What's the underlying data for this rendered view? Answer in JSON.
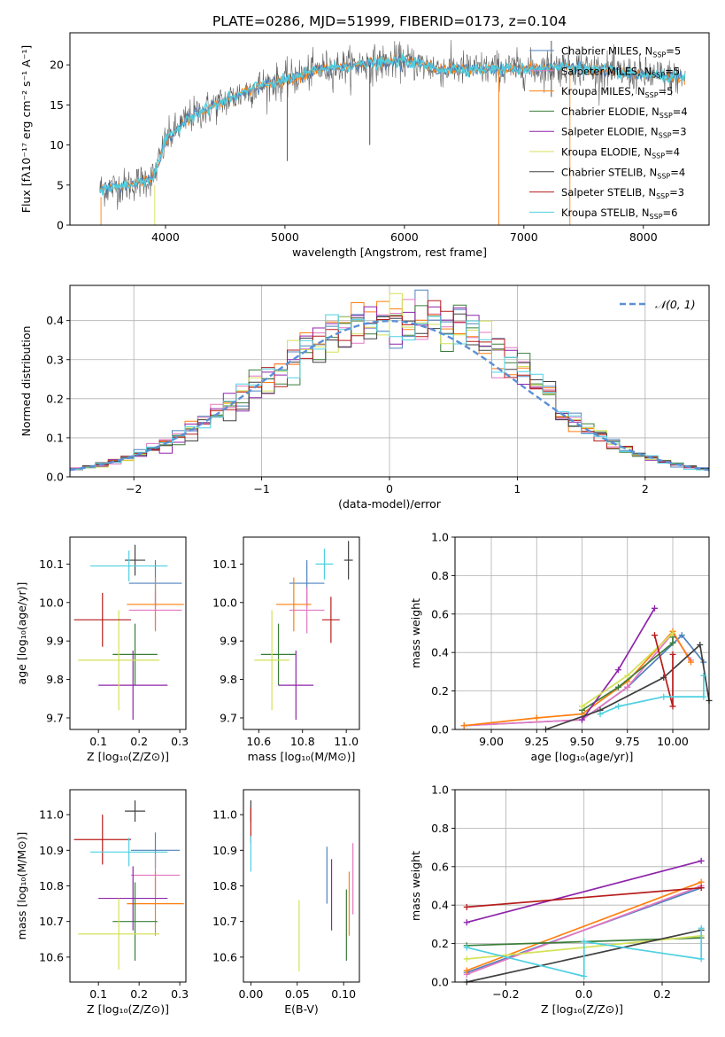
{
  "figure_title": "PLATE=0286, MJD=51999, FIBERID=0173, z=0.104",
  "colors": {
    "Chabrier MILES": "#4f81bd",
    "Salpeter MILES": "#e377c2",
    "Kroupa MILES": "#ff7f0e",
    "Chabrier ELODIE": "#3a7d3a",
    "Salpeter ELODIE": "#8e24aa",
    "Kroupa ELODIE": "#d4e157",
    "Chabrier STELIB": "#404040",
    "Salpeter STELIB": "#b71c1c",
    "Kroupa STELIB": "#4dd0e1",
    "gaussian": "#5b8fd6"
  },
  "chart_data": [
    {
      "id": "spectrum",
      "type": "line",
      "xlabel": "wavelength [Angstrom, rest frame]",
      "ylabel": "Flux [fλ10⁻¹⁷ erg cm⁻² s⁻¹ A⁻¹]",
      "xlim": [
        3200,
        8550
      ],
      "ylim": [
        0,
        24
      ],
      "xticks": [
        4000,
        5000,
        6000,
        7000,
        8000
      ],
      "yticks": [
        0,
        5,
        10,
        15,
        20
      ],
      "legend": "right",
      "legend_entries": [
        {
          "label": "Chabrier MILES, N",
          "sub": "SSP",
          "tail": "=5"
        },
        {
          "label": "Salpeter MILES, N",
          "sub": "SSP",
          "tail": "=5"
        },
        {
          "label": "Kroupa MILES, N",
          "sub": "SSP",
          "tail": "=5"
        },
        {
          "label": "Chabrier ELODIE, N",
          "sub": "SSP",
          "tail": "=4"
        },
        {
          "label": "Salpeter ELODIE, N",
          "sub": "SSP",
          "tail": "=3"
        },
        {
          "label": "Kroupa ELODIE, N",
          "sub": "SSP",
          "tail": "=4"
        },
        {
          "label": "Chabrier STELIB, N",
          "sub": "SSP",
          "tail": "=4"
        },
        {
          "label": "Salpeter STELIB, N",
          "sub": "SSP",
          "tail": "=3"
        },
        {
          "label": "Kroupa STELIB, N",
          "sub": "SSP",
          "tail": "=6"
        }
      ],
      "continuum": [
        [
          3450,
          4.5
        ],
        [
          3700,
          5.0
        ],
        [
          3900,
          6.0
        ],
        [
          4000,
          10.5
        ],
        [
          4200,
          13.5
        ],
        [
          4500,
          15.5
        ],
        [
          4800,
          17.5
        ],
        [
          5000,
          18.0
        ],
        [
          5300,
          19.5
        ],
        [
          5600,
          20.0
        ],
        [
          6000,
          20.5
        ],
        [
          6300,
          19.5
        ],
        [
          6600,
          19.5
        ],
        [
          7000,
          19.5
        ],
        [
          7400,
          19.8
        ],
        [
          7800,
          19.0
        ],
        [
          8200,
          18.5
        ],
        [
          8350,
          18.3
        ]
      ]
    },
    {
      "id": "residuals",
      "type": "histogram",
      "xlabel": "(data-model)/error",
      "ylabel": "Normed distribution",
      "xlim": [
        -2.5,
        2.5
      ],
      "ylim": [
        0,
        0.49
      ],
      "xticks": [
        -2,
        -1,
        0,
        1,
        2
      ],
      "yticks": [
        0.0,
        0.1,
        0.2,
        0.3,
        0.4
      ],
      "legend_label": "𝒩(0, 1)",
      "legend": "top-right",
      "grid": true
    },
    {
      "id": "age_vs_Z",
      "type": "errorbar",
      "xlabel": "Z [log₁₀(Z/Z⊙)]",
      "ylabel": "age  [log₁₀(age/yr)]",
      "xlim": [
        0.03,
        0.315
      ],
      "ylim": [
        9.67,
        10.17
      ],
      "xticks": [
        0.1,
        0.2,
        0.3
      ],
      "yticks": [
        9.7,
        9.8,
        9.9,
        10.0,
        10.1
      ],
      "points": [
        {
          "s": "Chabrier MILES",
          "x": 0.24,
          "xe": 0.065,
          "y": 10.05,
          "ye": 0.06
        },
        {
          "s": "Salpeter MILES",
          "x": 0.24,
          "xe": 0.065,
          "y": 9.98,
          "ye": 0.05
        },
        {
          "s": "Kroupa MILES",
          "x": 0.24,
          "xe": 0.07,
          "y": 9.995,
          "ye": 0.07
        },
        {
          "s": "Chabrier ELODIE",
          "x": 0.19,
          "xe": 0.055,
          "y": 9.865,
          "ye": 0.08
        },
        {
          "s": "Salpeter ELODIE",
          "x": 0.185,
          "xe": 0.085,
          "y": 9.785,
          "ye": 0.09
        },
        {
          "s": "Kroupa ELODIE",
          "x": 0.15,
          "xe": 0.1,
          "y": 9.85,
          "ye": 0.13
        },
        {
          "s": "Chabrier STELIB",
          "x": 0.19,
          "xe": 0.025,
          "y": 10.11,
          "ye": 0.04
        },
        {
          "s": "Salpeter STELIB",
          "x": 0.11,
          "xe": 0.07,
          "y": 9.955,
          "ye": 0.07
        },
        {
          "s": "Kroupa STELIB",
          "x": 0.175,
          "xe": 0.095,
          "y": 10.095,
          "ye": 0.04
        }
      ]
    },
    {
      "id": "age_vs_mass",
      "type": "errorbar",
      "xlabel": "mass [log₁₀(M/M⊙)]",
      "ylabel": "",
      "xlim": [
        10.53,
        11.06
      ],
      "ylim": [
        9.67,
        10.17
      ],
      "xticks": [
        10.6,
        10.8,
        11.0
      ],
      "yticks": [
        9.7,
        9.8,
        9.9,
        10.0,
        10.1
      ],
      "points": [
        {
          "s": "Chabrier MILES",
          "x": 10.82,
          "xe": 0.08,
          "y": 10.05,
          "ye": 0.06
        },
        {
          "s": "Salpeter MILES",
          "x": 10.82,
          "xe": 0.08,
          "y": 9.98,
          "ye": 0.06
        },
        {
          "s": "Kroupa MILES",
          "x": 10.76,
          "xe": 0.08,
          "y": 9.995,
          "ye": 0.07
        },
        {
          "s": "Chabrier ELODIE",
          "x": 10.69,
          "xe": 0.08,
          "y": 9.865,
          "ye": 0.08
        },
        {
          "s": "Salpeter ELODIE",
          "x": 10.77,
          "xe": 0.08,
          "y": 9.785,
          "ye": 0.09
        },
        {
          "s": "Kroupa ELODIE",
          "x": 10.66,
          "xe": 0.08,
          "y": 9.85,
          "ye": 0.13
        },
        {
          "s": "Chabrier STELIB",
          "x": 11.01,
          "xe": 0.02,
          "y": 10.11,
          "ye": 0.05
        },
        {
          "s": "Salpeter STELIB",
          "x": 10.93,
          "xe": 0.04,
          "y": 9.955,
          "ye": 0.06
        },
        {
          "s": "Kroupa STELIB",
          "x": 10.9,
          "xe": 0.04,
          "y": 10.1,
          "ye": 0.04
        }
      ]
    },
    {
      "id": "weight_vs_age",
      "type": "line",
      "xlabel": "age  [log₁₀(age/yr)]",
      "ylabel": "mass weight",
      "xlim": [
        8.8,
        10.2
      ],
      "ylim": [
        0,
        1.0
      ],
      "xticks": [
        9.0,
        9.25,
        9.5,
        9.75,
        10.0
      ],
      "yticks": [
        0.0,
        0.2,
        0.4,
        0.6,
        0.8,
        1.0
      ],
      "grid": true,
      "series": [
        {
          "s": "Chabrier MILES",
          "points": [
            [
              8.85,
              0.02
            ],
            [
              9.5,
              0.05
            ],
            [
              9.75,
              0.22
            ],
            [
              10.05,
              0.49
            ],
            [
              10.17,
              0.35
            ]
          ]
        },
        {
          "s": "Salpeter MILES",
          "points": [
            [
              8.85,
              0.02
            ],
            [
              9.5,
              0.05
            ],
            [
              9.75,
              0.22
            ],
            [
              10.0,
              0.5
            ],
            [
              10.1,
              0.36
            ]
          ]
        },
        {
          "s": "Kroupa MILES",
          "points": [
            [
              8.85,
              0.02
            ],
            [
              9.25,
              0.06
            ],
            [
              9.5,
              0.08
            ],
            [
              9.75,
              0.25
            ],
            [
              10.0,
              0.51
            ],
            [
              10.1,
              0.35
            ]
          ]
        },
        {
          "s": "Chabrier ELODIE",
          "points": [
            [
              9.5,
              0.1
            ],
            [
              9.7,
              0.22
            ],
            [
              10.0,
              0.45
            ],
            [
              10.0,
              0.48
            ]
          ]
        },
        {
          "s": "Salpeter ELODIE",
          "points": [
            [
              9.5,
              0.05
            ],
            [
              9.7,
              0.31
            ],
            [
              9.9,
              0.63
            ]
          ]
        },
        {
          "s": "Kroupa ELODIE",
          "points": [
            [
              9.5,
              0.12
            ],
            [
              9.75,
              0.28
            ],
            [
              10.0,
              0.5
            ]
          ]
        },
        {
          "s": "Chabrier STELIB",
          "points": [
            [
              9.3,
              0.0
            ],
            [
              9.6,
              0.1
            ],
            [
              9.95,
              0.27
            ],
            [
              10.15,
              0.44
            ],
            [
              10.2,
              0.15
            ]
          ]
        },
        {
          "s": "Salpeter STELIB",
          "points": [
            [
              9.9,
              0.49
            ],
            [
              10.0,
              0.12
            ],
            [
              10.0,
              0.39
            ]
          ]
        },
        {
          "s": "Kroupa STELIB",
          "points": [
            [
              9.6,
              0.08
            ],
            [
              9.7,
              0.12
            ],
            [
              9.95,
              0.17
            ],
            [
              10.17,
              0.17
            ],
            [
              10.17,
              0.28
            ]
          ]
        }
      ]
    },
    {
      "id": "mass_vs_Z",
      "type": "errorbar",
      "xlabel": "Z [log₁₀(Z/Z⊙)]",
      "ylabel": "mass [log₁₀(M/M⊙)]",
      "xlim": [
        0.03,
        0.315
      ],
      "ylim": [
        10.53,
        11.07
      ],
      "xticks": [
        0.1,
        0.2,
        0.3
      ],
      "yticks": [
        10.6,
        10.7,
        10.8,
        10.9,
        11.0
      ],
      "points": [
        {
          "s": "Chabrier MILES",
          "x": 0.24,
          "xe": 0.06,
          "y": 10.9,
          "ye": 0.05
        },
        {
          "s": "Salpeter MILES",
          "x": 0.24,
          "xe": 0.06,
          "y": 10.83,
          "ye": 0.06
        },
        {
          "s": "Kroupa MILES",
          "x": 0.24,
          "xe": 0.07,
          "y": 10.75,
          "ye": 0.09
        },
        {
          "s": "Chabrier ELODIE",
          "x": 0.19,
          "xe": 0.055,
          "y": 10.7,
          "ye": 0.11
        },
        {
          "s": "Salpeter ELODIE",
          "x": 0.185,
          "xe": 0.085,
          "y": 10.765,
          "ye": 0.09
        },
        {
          "s": "Kroupa ELODIE",
          "x": 0.15,
          "xe": 0.1,
          "y": 10.665,
          "ye": 0.1
        },
        {
          "s": "Chabrier STELIB",
          "x": 0.19,
          "xe": 0.025,
          "y": 11.01,
          "ye": 0.03
        },
        {
          "s": "Salpeter STELIB",
          "x": 0.11,
          "xe": 0.07,
          "y": 10.93,
          "ye": 0.07
        },
        {
          "s": "Kroupa STELIB",
          "x": 0.175,
          "xe": 0.095,
          "y": 10.895,
          "ye": 0.04
        }
      ]
    },
    {
      "id": "mass_vs_ebv",
      "type": "errorbar",
      "xlabel": "E(B-V)",
      "ylabel": "",
      "xlim": [
        -0.008,
        0.117
      ],
      "ylim": [
        10.53,
        11.07
      ],
      "xticks": [
        0.0,
        0.05,
        0.1
      ],
      "xticklabels": [
        "0.00",
        "0.05",
        "0.10"
      ],
      "yticks": [
        10.6,
        10.7,
        10.8,
        10.9,
        11.0
      ],
      "points": [
        {
          "s": "Chabrier MILES",
          "x": 0.082,
          "xe": 0,
          "y": 10.83,
          "ye": 0.08
        },
        {
          "s": "Salpeter MILES",
          "x": 0.11,
          "xe": 0,
          "y": 10.82,
          "ye": 0.1
        },
        {
          "s": "Kroupa MILES",
          "x": 0.106,
          "xe": 0,
          "y": 10.75,
          "ye": 0.09
        },
        {
          "s": "Chabrier ELODIE",
          "x": 0.103,
          "xe": 0,
          "y": 10.69,
          "ye": 0.1
        },
        {
          "s": "Salpeter ELODIE",
          "x": 0.087,
          "xe": 0,
          "y": 10.775,
          "ye": 0.1
        },
        {
          "s": "Kroupa ELODIE",
          "x": 0.052,
          "xe": 0,
          "y": 10.66,
          "ye": 0.1
        },
        {
          "s": "Chabrier STELIB",
          "x": 0.0,
          "xe": 0,
          "y": 11.01,
          "ye": 0.03
        },
        {
          "s": "Salpeter STELIB",
          "x": 0.0,
          "xe": 0,
          "y": 10.97,
          "ye": 0.05
        },
        {
          "s": "Kroupa STELIB",
          "x": 0.0,
          "xe": 0,
          "y": 10.89,
          "ye": 0.05
        }
      ]
    },
    {
      "id": "weight_vs_Z",
      "type": "line",
      "xlabel": "Z [log₁₀(Z/Z⊙)]",
      "ylabel": "mass weight",
      "xlim": [
        -0.33,
        0.32
      ],
      "ylim": [
        0,
        1.0
      ],
      "xticks": [
        -0.2,
        0.0,
        0.2
      ],
      "yticks": [
        0.0,
        0.2,
        0.4,
        0.6,
        0.8,
        1.0
      ],
      "grid": true,
      "series": [
        {
          "s": "Chabrier MILES",
          "points": [
            [
              -0.3,
              0.05
            ],
            [
              0.3,
              0.49
            ]
          ]
        },
        {
          "s": "Salpeter MILES",
          "points": [
            [
              -0.3,
              0.04
            ],
            [
              0.3,
              0.5
            ]
          ]
        },
        {
          "s": "Kroupa MILES",
          "points": [
            [
              -0.3,
              0.06
            ],
            [
              0.3,
              0.52
            ]
          ]
        },
        {
          "s": "Chabrier ELODIE",
          "points": [
            [
              -0.3,
              0.19
            ],
            [
              0.3,
              0.23
            ]
          ]
        },
        {
          "s": "Salpeter ELODIE",
          "points": [
            [
              -0.3,
              0.31
            ],
            [
              0.3,
              0.63
            ]
          ]
        },
        {
          "s": "Kroupa ELODIE",
          "points": [
            [
              -0.3,
              0.12
            ],
            [
              0.3,
              0.24
            ]
          ]
        },
        {
          "s": "Chabrier STELIB",
          "points": [
            [
              -0.3,
              0.0
            ],
            [
              0.3,
              0.27
            ]
          ]
        },
        {
          "s": "Salpeter STELIB",
          "points": [
            [
              -0.3,
              0.39
            ],
            [
              0.3,
              0.49
            ]
          ]
        },
        {
          "s": "Kroupa STELIB",
          "points": [
            [
              -0.3,
              0.18
            ],
            [
              0.0,
              0.03
            ],
            [
              0.0,
              0.21
            ],
            [
              0.3,
              0.12
            ],
            [
              0.3,
              0.28
            ]
          ]
        }
      ]
    }
  ]
}
